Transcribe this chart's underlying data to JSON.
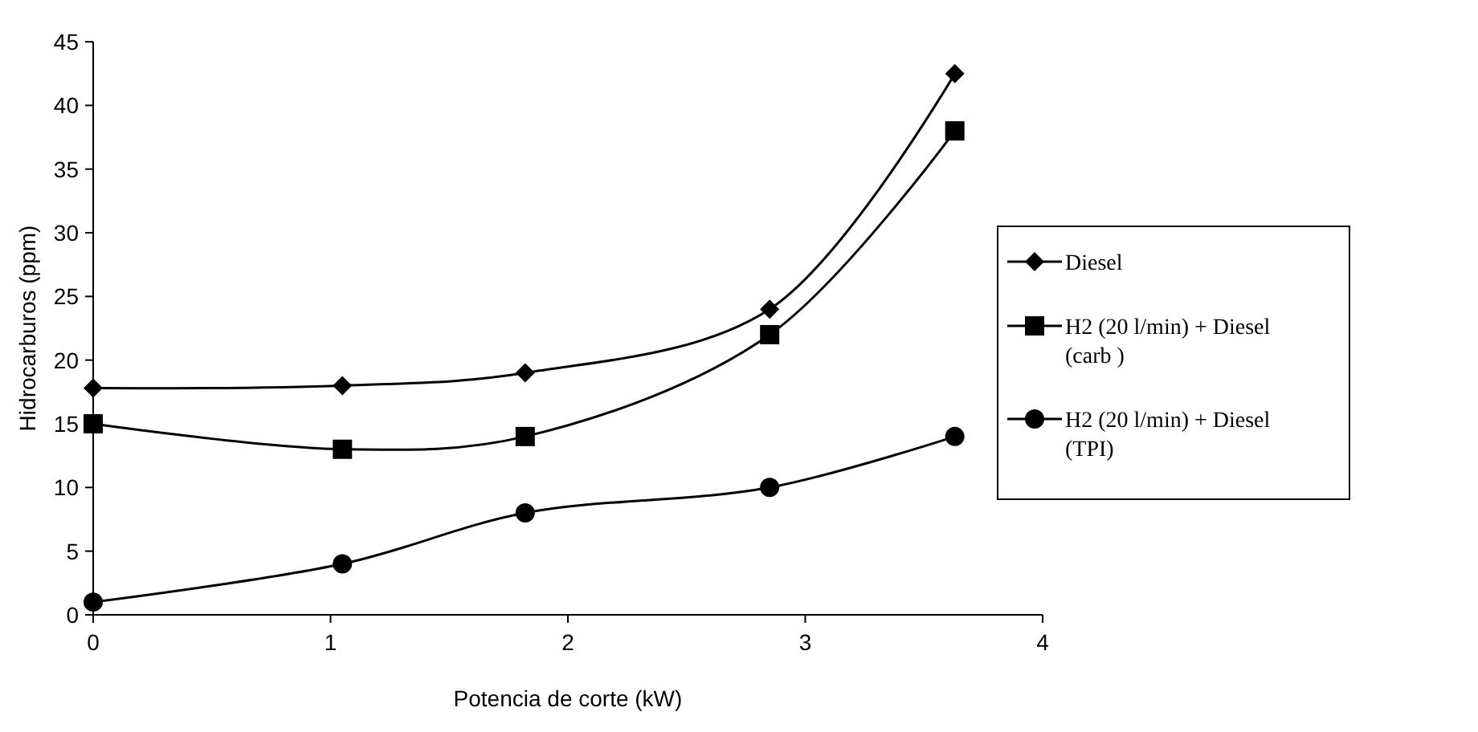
{
  "chart_data": {
    "type": "line",
    "xlabel": "Potencia de corte (kW)",
    "ylabel": "Hidrocarburos (ppm)",
    "x": [
      0,
      1.05,
      1.82,
      2.85,
      3.63
    ],
    "series": [
      {
        "name": "Diesel",
        "color": "#000000",
        "marker": "diamond",
        "values": [
          17.8,
          18,
          19,
          24,
          42.5
        ]
      },
      {
        "name": "H2 (20 l/min) + Diesel (carb  )",
        "color": "#000000",
        "marker": "square",
        "values": [
          15,
          13,
          14,
          22,
          38
        ]
      },
      {
        "name": "H2 (20 l/min) + Diesel (TPI)",
        "color": "#000000",
        "marker": "circle",
        "values": [
          1,
          4,
          8,
          10,
          14
        ]
      }
    ],
    "xlim": [
      0,
      4
    ],
    "xticks": [
      0,
      1,
      2,
      3,
      4
    ],
    "ylim": [
      0,
      45
    ],
    "yticks": [
      0,
      5,
      10,
      15,
      20,
      25,
      30,
      35,
      40,
      45
    ],
    "grid": false,
    "legend": "right",
    "line_style": "solid"
  }
}
